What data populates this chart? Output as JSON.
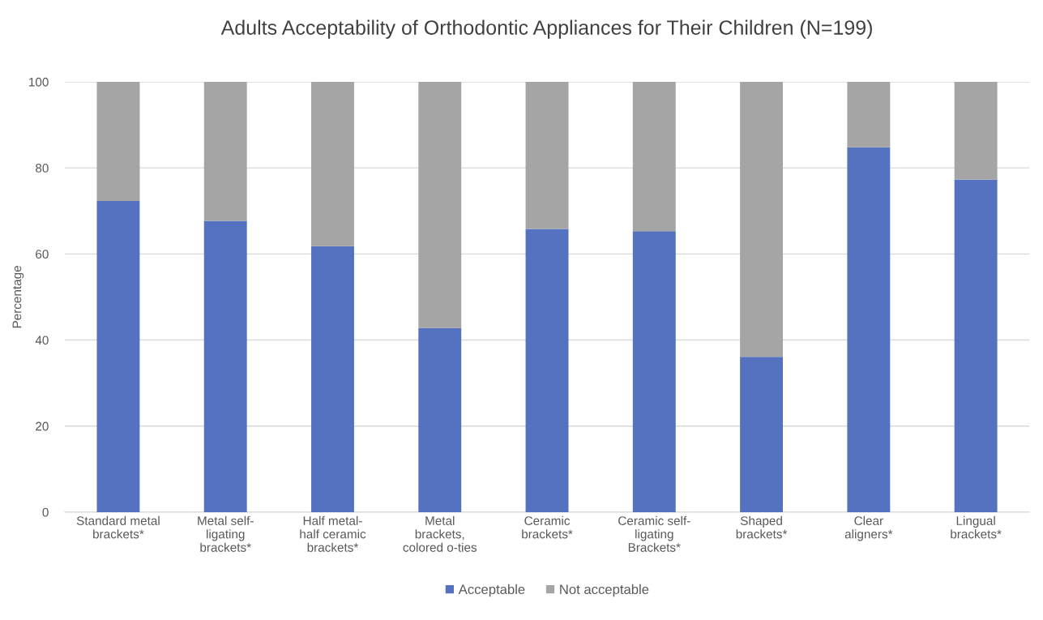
{
  "chart_data": {
    "type": "bar",
    "title": "Adults Acceptability of Orthodontic Appliances for Their Children (N=199)",
    "ylabel": "Percentage",
    "categories": [
      "Standard metal brackets*",
      "Metal self-ligating brackets*",
      "Half metal-half ceramic brackets*",
      "Metal brackets, colored o-ties",
      "Ceramic brackets*",
      "Ceramic self-ligating Brackets*",
      "Shaped brackets*",
      "Clear aligners*",
      "Lingual brackets*"
    ],
    "series": [
      {
        "name": "Acceptable",
        "color": "#5572c0",
        "values": [
          72.3,
          67.7,
          61.8,
          42.8,
          65.8,
          65.3,
          36.1,
          84.8,
          77.3
        ]
      },
      {
        "name": "Not acceptable",
        "color": "#a5a5a5",
        "values": [
          27.7,
          32.3,
          38.2,
          57.2,
          34.2,
          34.7,
          63.9,
          15.2,
          22.7
        ]
      }
    ],
    "stacked": true,
    "ylim": [
      0,
      100
    ],
    "yticks": [
      0,
      20,
      40,
      60,
      80,
      100
    ],
    "grid": "y",
    "legend": "bottom"
  }
}
